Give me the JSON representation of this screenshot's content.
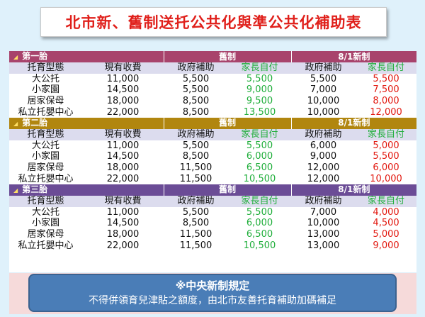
{
  "title": "北市新、舊制送托公共化與準公共化補助表",
  "sections": [
    {
      "birth": "第一胎",
      "old_label": "舊制",
      "new_label": "8/1新制",
      "headers": [
        "托育型態",
        "現有收費",
        "政府補助",
        "家長自付",
        "政府補助",
        "家長自付"
      ],
      "rows": [
        [
          "大公托",
          "11,000",
          "5,500",
          "5,500",
          "5,500",
          "5,500"
        ],
        [
          "小家園",
          "14,500",
          "5,500",
          "9,000",
          "7,000",
          "7,500"
        ],
        [
          "居家保母",
          "18,000",
          "8,500",
          "9,500",
          "10,000",
          "8,000"
        ],
        [
          "私立托嬰中心",
          "22,000",
          "8,500",
          "13,500",
          "10,000",
          "12,000"
        ]
      ]
    },
    {
      "birth": "第二胎",
      "old_label": "舊制",
      "new_label": "8/1新制",
      "headers": [
        "托育型態",
        "現有收費",
        "政府補助",
        "家長自付",
        "政府補助",
        "家長自付"
      ],
      "rows": [
        [
          "大公托",
          "11,000",
          "5,500",
          "5,500",
          "6,000",
          "5,000"
        ],
        [
          "小家園",
          "14,500",
          "8,500",
          "6,000",
          "9,000",
          "5,500"
        ],
        [
          "居家保母",
          "18,000",
          "11,500",
          "6,500",
          "12,000",
          "6,000"
        ],
        [
          "私立托嬰中心",
          "22,000",
          "11,500",
          "10,500",
          "12,000",
          "10,000"
        ]
      ]
    },
    {
      "birth": "第三胎",
      "old_label": "舊制",
      "new_label": "8/1新制",
      "headers": [
        "托育型態",
        "現有收費",
        "政府補助",
        "家長自付",
        "政府補助",
        "家長自付"
      ],
      "rows": [
        [
          "大公托",
          "11,000",
          "5,500",
          "5,500",
          "7,000",
          "4,000"
        ],
        [
          "小家園",
          "14,500",
          "8,500",
          "6,000",
          "10,000",
          "4,500"
        ],
        [
          "居家保母",
          "18,000",
          "11,500",
          "6,500",
          "13,000",
          "5,000"
        ],
        [
          "私立托嬰中心",
          "22,000",
          "11,500",
          "10,500",
          "13,000",
          "9,000"
        ]
      ]
    }
  ],
  "notice": {
    "line1": "※中央新制規定",
    "line2": "不得併領育兒津貼之額度，由北市友善托育補助加碼補足"
  },
  "colors": {
    "section_bands": [
      "#a8436c",
      "#b1860f",
      "#6b4c96"
    ],
    "header_bg": "#dcdcee",
    "old_parent_pay": "#1fae3a",
    "new_parent_pay": "#e2180f",
    "title_text": "#e0201b"
  }
}
